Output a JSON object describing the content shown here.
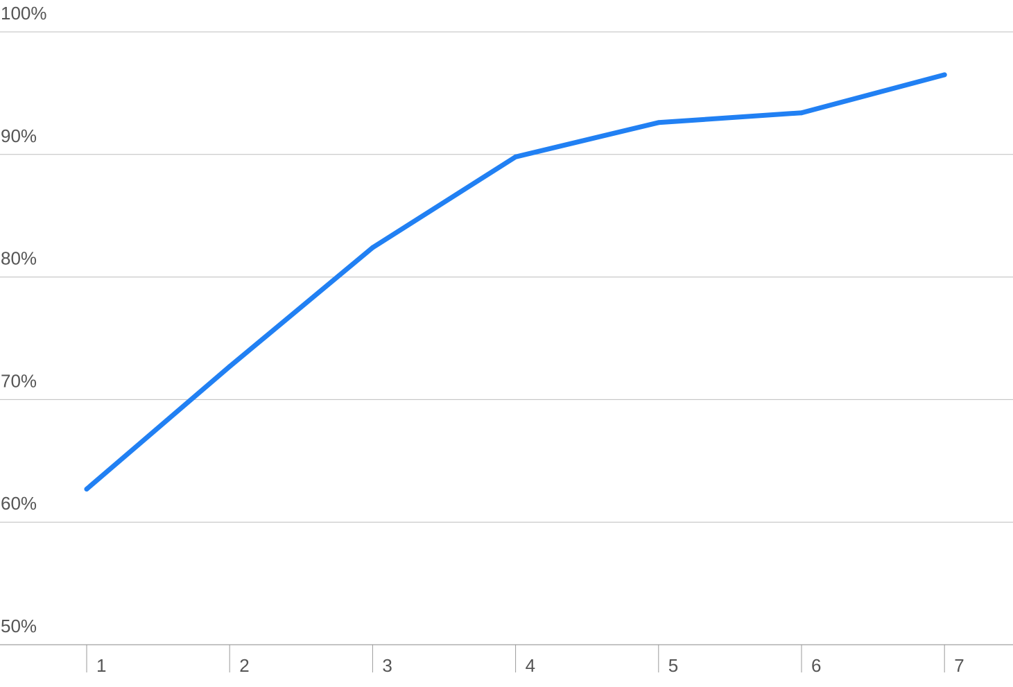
{
  "chart_data": {
    "type": "line",
    "title": "",
    "xlabel": "",
    "ylabel": "",
    "categories": [
      "1",
      "2",
      "3",
      "4",
      "5",
      "6",
      "7"
    ],
    "series": [
      {
        "values": [
          62.7,
          72.7,
          82.4,
          89.8,
          92.6,
          93.4,
          96.5
        ],
        "color": "#2180f3"
      }
    ],
    "ylim": [
      50,
      100
    ],
    "y_ticks": [
      50,
      60,
      70,
      80,
      90,
      100
    ],
    "y_tick_labels": [
      "50%",
      "60%",
      "70%",
      "80%",
      "90%",
      "100%"
    ],
    "grid": true,
    "legend": "none"
  }
}
